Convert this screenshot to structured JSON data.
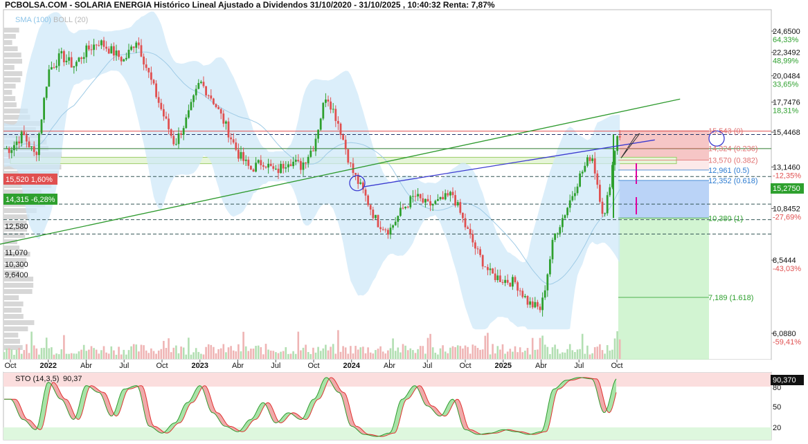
{
  "header": {
    "title": "PCBOLSA.COM - SOLARIA ENERGIA Histórico Lineal Ajustado a Dividendos 31/10/2020 - 31/10/2025 , 10:40:32 Renta: 7,87%"
  },
  "indicators": {
    "sma": "SMA (100)",
    "boll": "BOLL (20)"
  },
  "price_axis": [
    {
      "price": "24,6500",
      "pct": "64,33%"
    },
    {
      "price": "22,3492",
      "pct": "48,99%"
    },
    {
      "price": "20,0484",
      "pct": "33,65%"
    },
    {
      "price": "17,7476",
      "pct": "18,31%"
    },
    {
      "price": "15,4468",
      "pct": ""
    },
    {
      "price": "13,1460",
      "pct": "-12,35%"
    },
    {
      "price": "10,8452",
      "pct": "-27,69%"
    },
    {
      "price": "8,5444",
      "pct": "-43,03%"
    },
    {
      "price": "6,0880",
      "pct": "-59,41%"
    }
  ],
  "current_price_tag": "15,2750",
  "left_levels": {
    "red_tag": "15,520  1,60%",
    "green_tag": "14,315  -6,28%",
    "l1": "12,580",
    "l2": "11,070",
    "l3": "10,300",
    "l4": "9,6400"
  },
  "fib_levels": [
    {
      "label": "15,543 (0)",
      "color": "#e07070"
    },
    {
      "label": "14,324 (0.236)",
      "color": "#e07070"
    },
    {
      "label": "13,570 (0.382)",
      "color": "#e07070"
    },
    {
      "label": "12,961 (0.5)",
      "color": "#2a7ad0"
    },
    {
      "label": "12,352 (0.618)",
      "color": "#2a7ad0"
    },
    {
      "label": "10,380 (1)",
      "color": "#2ea02e"
    },
    {
      "label": "7,189 (1.618)",
      "color": "#2ea02e"
    }
  ],
  "x_axis": [
    {
      "label": "Oct",
      "bold": false
    },
    {
      "label": "2022",
      "bold": true
    },
    {
      "label": "Abr",
      "bold": false
    },
    {
      "label": "Jul",
      "bold": false
    },
    {
      "label": "Oct",
      "bold": false
    },
    {
      "label": "2023",
      "bold": true
    },
    {
      "label": "Abr",
      "bold": false
    },
    {
      "label": "Jul",
      "bold": false
    },
    {
      "label": "Oct",
      "bold": false
    },
    {
      "label": "2024",
      "bold": true
    },
    {
      "label": "Abr",
      "bold": false
    },
    {
      "label": "Jul",
      "bold": false
    },
    {
      "label": "Oct",
      "bold": false
    },
    {
      "label": "2025",
      "bold": true
    },
    {
      "label": "Abr",
      "bold": false
    },
    {
      "label": "Jul",
      "bold": false
    },
    {
      "label": "Oct",
      "bold": false
    }
  ],
  "stochastic": {
    "label": "STO (14,3,5)",
    "value": "90,37",
    "value_tag": "90,370",
    "levels": [
      "80",
      "50",
      "20"
    ]
  },
  "colors": {
    "up": "#2ea02e",
    "down": "#e05050",
    "boll": "#cfe8f8",
    "sma": "#9fcbe6",
    "trend_green": "#2e9a2e",
    "trend_blue": "#3a3ad0"
  },
  "chart_data": {
    "type": "candlestick",
    "title": "PCBOLSA.COM - SOLARIA ENERGIA Histórico Lineal Ajustado a Dividendos 31/10/2020 - 31/10/2025 , 10:40:32 Renta: 7,87%",
    "yscale": "log",
    "ylim": [
      6.088,
      24.65
    ],
    "x_range": [
      "2021-10",
      "2025-10"
    ],
    "price_path": [
      [
        "2021-10",
        14.3
      ],
      [
        "2021-11",
        15.3
      ],
      [
        "2021-12",
        13.8
      ],
      [
        "2022-01",
        20.5
      ],
      [
        "2022-02",
        22.0
      ],
      [
        "2022-03",
        21.0
      ],
      [
        "2022-04",
        22.5
      ],
      [
        "2022-05",
        23.5
      ],
      [
        "2022-06",
        22.5
      ],
      [
        "2022-07",
        21.5
      ],
      [
        "2022-08",
        23.8
      ],
      [
        "2022-09",
        20.0
      ],
      [
        "2022-10",
        17.0
      ],
      [
        "2022-11",
        14.6
      ],
      [
        "2022-12",
        16.5
      ],
      [
        "2023-01",
        19.5
      ],
      [
        "2023-02",
        18.0
      ],
      [
        "2023-03",
        16.0
      ],
      [
        "2023-04",
        14.0
      ],
      [
        "2023-05",
        13.0
      ],
      [
        "2023-06",
        13.5
      ],
      [
        "2023-07",
        12.8
      ],
      [
        "2023-08",
        13.6
      ],
      [
        "2023-09",
        13.2
      ],
      [
        "2023-10",
        14.5
      ],
      [
        "2023-11",
        18.5
      ],
      [
        "2023-12",
        16.0
      ],
      [
        "2024-01",
        13.0
      ],
      [
        "2024-02",
        11.6
      ],
      [
        "2024-03",
        10.2
      ],
      [
        "2024-04",
        9.8
      ],
      [
        "2024-05",
        10.8
      ],
      [
        "2024-06",
        11.5
      ],
      [
        "2024-07",
        11.0
      ],
      [
        "2024-08",
        11.2
      ],
      [
        "2024-09",
        11.6
      ],
      [
        "2024-10",
        10.0
      ],
      [
        "2024-11",
        8.8
      ],
      [
        "2024-12",
        8.0
      ],
      [
        "2025-01",
        7.8
      ],
      [
        "2025-02",
        7.7
      ],
      [
        "2025-03",
        7.0
      ],
      [
        "2025-04",
        6.8
      ],
      [
        "2025-05",
        9.5
      ],
      [
        "2025-06",
        10.8
      ],
      [
        "2025-07",
        12.5
      ],
      [
        "2025-08",
        14.0
      ],
      [
        "2025-09",
        10.3
      ],
      [
        "2025-10",
        15.275
      ]
    ],
    "trend_lines": [
      {
        "color": "green",
        "from": [
          "2020-10",
          8.0
        ],
        "to": [
          "2026-03",
          18.0
        ]
      },
      {
        "color": "blue",
        "from": [
          "2024-02",
          12.0
        ],
        "to": [
          "2026-01",
          14.9
        ]
      }
    ],
    "fibonacci": [
      {
        "ratio": 0,
        "price": 15.543
      },
      {
        "ratio": 0.236,
        "price": 14.324
      },
      {
        "ratio": 0.382,
        "price": 13.57
      },
      {
        "ratio": 0.5,
        "price": 12.961
      },
      {
        "ratio": 0.618,
        "price": 12.352
      },
      {
        "ratio": 1,
        "price": 10.38
      },
      {
        "ratio": 1.618,
        "price": 7.189
      }
    ],
    "horizontal_levels": [
      15.52,
      15.275,
      14.315,
      12.58,
      11.07,
      10.3,
      9.64
    ],
    "stochastic_path": [
      [
        "2021-10",
        60
      ],
      [
        "2021-11",
        30
      ],
      [
        "2021-12",
        15
      ],
      [
        "2022-01",
        85
      ],
      [
        "2022-02",
        60
      ],
      [
        "2022-03",
        30
      ],
      [
        "2022-04",
        80
      ],
      [
        "2022-05",
        70
      ],
      [
        "2022-06",
        35
      ],
      [
        "2022-07",
        75
      ],
      [
        "2022-08",
        80
      ],
      [
        "2022-09",
        20
      ],
      [
        "2022-10",
        10
      ],
      [
        "2022-11",
        25
      ],
      [
        "2022-12",
        55
      ],
      [
        "2023-01",
        80
      ],
      [
        "2023-02",
        40
      ],
      [
        "2023-03",
        20
      ],
      [
        "2023-04",
        12
      ],
      [
        "2023-05",
        30
      ],
      [
        "2023-06",
        55
      ],
      [
        "2023-07",
        25
      ],
      [
        "2023-08",
        40
      ],
      [
        "2023-09",
        30
      ],
      [
        "2023-10",
        60
      ],
      [
        "2023-11",
        92
      ],
      [
        "2023-12",
        70
      ],
      [
        "2024-01",
        20
      ],
      [
        "2024-02",
        8
      ],
      [
        "2024-03",
        5
      ],
      [
        "2024-04",
        10
      ],
      [
        "2024-05",
        60
      ],
      [
        "2024-06",
        80
      ],
      [
        "2024-07",
        50
      ],
      [
        "2024-08",
        35
      ],
      [
        "2024-09",
        60
      ],
      [
        "2024-10",
        15
      ],
      [
        "2024-11",
        8
      ],
      [
        "2024-12",
        10
      ],
      [
        "2025-01",
        15
      ],
      [
        "2025-02",
        12
      ],
      [
        "2025-03",
        8
      ],
      [
        "2025-04",
        12
      ],
      [
        "2025-05",
        75
      ],
      [
        "2025-06",
        88
      ],
      [
        "2025-07",
        92
      ],
      [
        "2025-08",
        90
      ],
      [
        "2025-09",
        40
      ],
      [
        "2025-10",
        90.37
      ]
    ],
    "stochastic_levels": [
      80,
      50,
      20
    ]
  }
}
